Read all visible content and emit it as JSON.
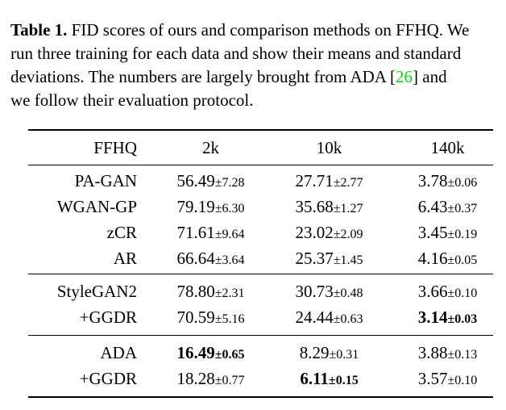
{
  "caption": {
    "line1": {
      "label_bold": "Table 1.",
      "text": " FID scores of ours and comparison methods on FFHQ. We"
    },
    "line2": {
      "text": "run three training for each data and show their means and standard"
    },
    "line3": {
      "before": "deviations. The numbers are largely brought from ADA [",
      "cite": "26",
      "after": "] and"
    },
    "line4": {
      "text": "we follow their evaluation protocol."
    }
  },
  "colors": {
    "citation_green": "#00dd00",
    "text": "#000000",
    "background": "#ffffff"
  },
  "table": {
    "columns": [
      "FFHQ",
      "2k",
      "10k",
      "140k"
    ],
    "plus_minus": "±",
    "groups": [
      {
        "rows": [
          {
            "label": "PA-GAN",
            "cells": [
              {
                "mean": "56.49",
                "std": "7.28",
                "bold": false
              },
              {
                "mean": "27.71",
                "std": "2.77",
                "bold": false
              },
              {
                "mean": "3.78",
                "std": "0.06",
                "bold": false
              }
            ]
          },
          {
            "label": "WGAN-GP",
            "cells": [
              {
                "mean": "79.19",
                "std": "6.30",
                "bold": false
              },
              {
                "mean": "35.68",
                "std": "1.27",
                "bold": false
              },
              {
                "mean": "6.43",
                "std": "0.37",
                "bold": false
              }
            ]
          },
          {
            "label": "zCR",
            "cells": [
              {
                "mean": "71.61",
                "std": "9.64",
                "bold": false
              },
              {
                "mean": "23.02",
                "std": "2.09",
                "bold": false
              },
              {
                "mean": "3.45",
                "std": "0.19",
                "bold": false
              }
            ]
          },
          {
            "label": "AR",
            "cells": [
              {
                "mean": "66.64",
                "std": "3.64",
                "bold": false
              },
              {
                "mean": "25.37",
                "std": "1.45",
                "bold": false
              },
              {
                "mean": "4.16",
                "std": "0.05",
                "bold": false
              }
            ]
          }
        ]
      },
      {
        "rows": [
          {
            "label": "StyleGAN2",
            "cells": [
              {
                "mean": "78.80",
                "std": "2.31",
                "bold": false
              },
              {
                "mean": "30.73",
                "std": "0.48",
                "bold": false
              },
              {
                "mean": "3.66",
                "std": "0.10",
                "bold": false
              }
            ]
          },
          {
            "label": "+GGDR",
            "cells": [
              {
                "mean": "70.59",
                "std": "5.16",
                "bold": false
              },
              {
                "mean": "24.44",
                "std": "0.63",
                "bold": false
              },
              {
                "mean": "3.14",
                "std": "0.03",
                "bold": true
              }
            ]
          }
        ]
      },
      {
        "rows": [
          {
            "label": "ADA",
            "cells": [
              {
                "mean": "16.49",
                "std": "0.65",
                "bold": true
              },
              {
                "mean": "8.29",
                "std": "0.31",
                "bold": false
              },
              {
                "mean": "3.88",
                "std": "0.13",
                "bold": false
              }
            ]
          },
          {
            "label": "+GGDR",
            "cells": [
              {
                "mean": "18.28",
                "std": "0.77",
                "bold": false
              },
              {
                "mean": "6.11",
                "std": "0.15",
                "bold": true
              },
              {
                "mean": "3.57",
                "std": "0.10",
                "bold": false
              }
            ]
          }
        ]
      }
    ]
  }
}
